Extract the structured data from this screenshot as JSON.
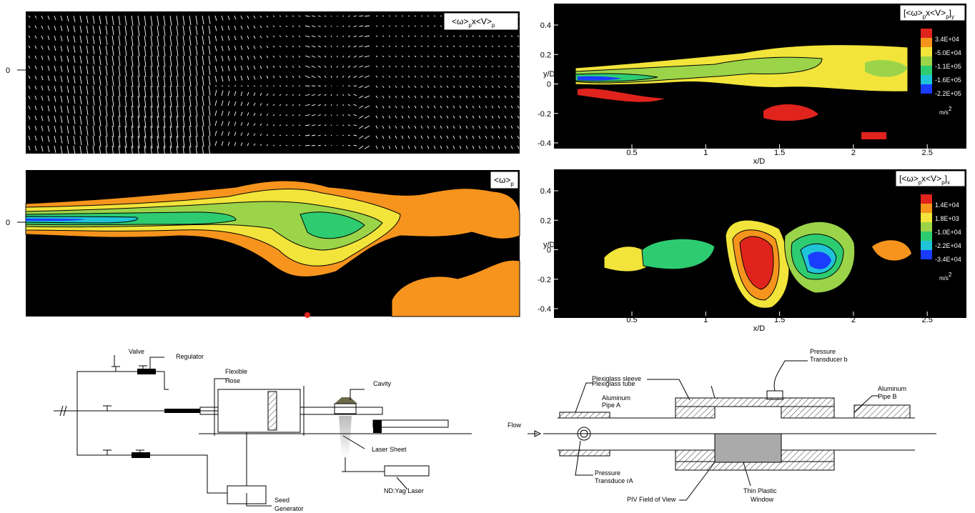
{
  "vector_panel": {
    "y_label": "0",
    "legend": [
      "<ω>",
      "p",
      "x<V>",
      "p"
    ]
  },
  "vorticity_panel": {
    "y_label": "0",
    "legend": [
      "<ω>",
      "p"
    ]
  },
  "lamb_y_panel": {
    "legend": [
      "[<ω>",
      "p",
      "x<V>",
      "p",
      "]",
      "y"
    ],
    "yticks": [
      "0.4",
      "0.2",
      "0",
      "-0.2",
      "-0.4"
    ],
    "xticks": [
      "0.5",
      "1",
      "1.5",
      "2",
      "2.5"
    ],
    "x_label": "x/D",
    "y_label": "y/D",
    "colorbar": [
      "3.4E+04",
      "-5.0E+04",
      "-1.1E+05",
      "-1.6E+05",
      "-2.2E+05"
    ],
    "unit": [
      "m/s",
      "2"
    ]
  },
  "lamb_x_panel": {
    "legend": [
      "[<ω>",
      "p",
      "x<V>",
      "p",
      "]",
      "x"
    ],
    "yticks": [
      "0.4",
      "0.2",
      "0",
      "-0.2",
      "-0.4"
    ],
    "xticks": [
      "0.5",
      "1",
      "1.5",
      "2",
      "2.5"
    ],
    "x_label": "x/D",
    "y_label": "y/D",
    "colorbar": [
      "1.4E+04",
      "1.8E+03",
      "-1.0E+04",
      "-2.2E+04",
      "-3.4E+04"
    ],
    "unit": [
      "m/s",
      "2"
    ]
  },
  "setup_diagram": {
    "valve": "Valve",
    "regulator": "Regulator",
    "flexible_hose": [
      "Flexible",
      "Hose"
    ],
    "cavity": "Cavity",
    "laser_sheet": "Laser Sheet",
    "laser": "ND:Yag Laser",
    "seed_generator": [
      "Seed",
      "Generator"
    ]
  },
  "test_section_diagram": {
    "transducer_b": [
      "Pressure",
      "Transducer b"
    ],
    "tube": "Plexiglass tube",
    "sleeve": "Plexiglass sleeve",
    "pipe_a": [
      "Aluminum",
      "Pipe A"
    ],
    "pipe_b": [
      "Aluminum",
      "Pipe B"
    ],
    "flow": "Flow",
    "transducer_a": [
      "Pressure",
      "Transduce rA"
    ],
    "piv": "PIV Field of View",
    "window": [
      "Thin Plastic",
      "Window"
    ]
  }
}
